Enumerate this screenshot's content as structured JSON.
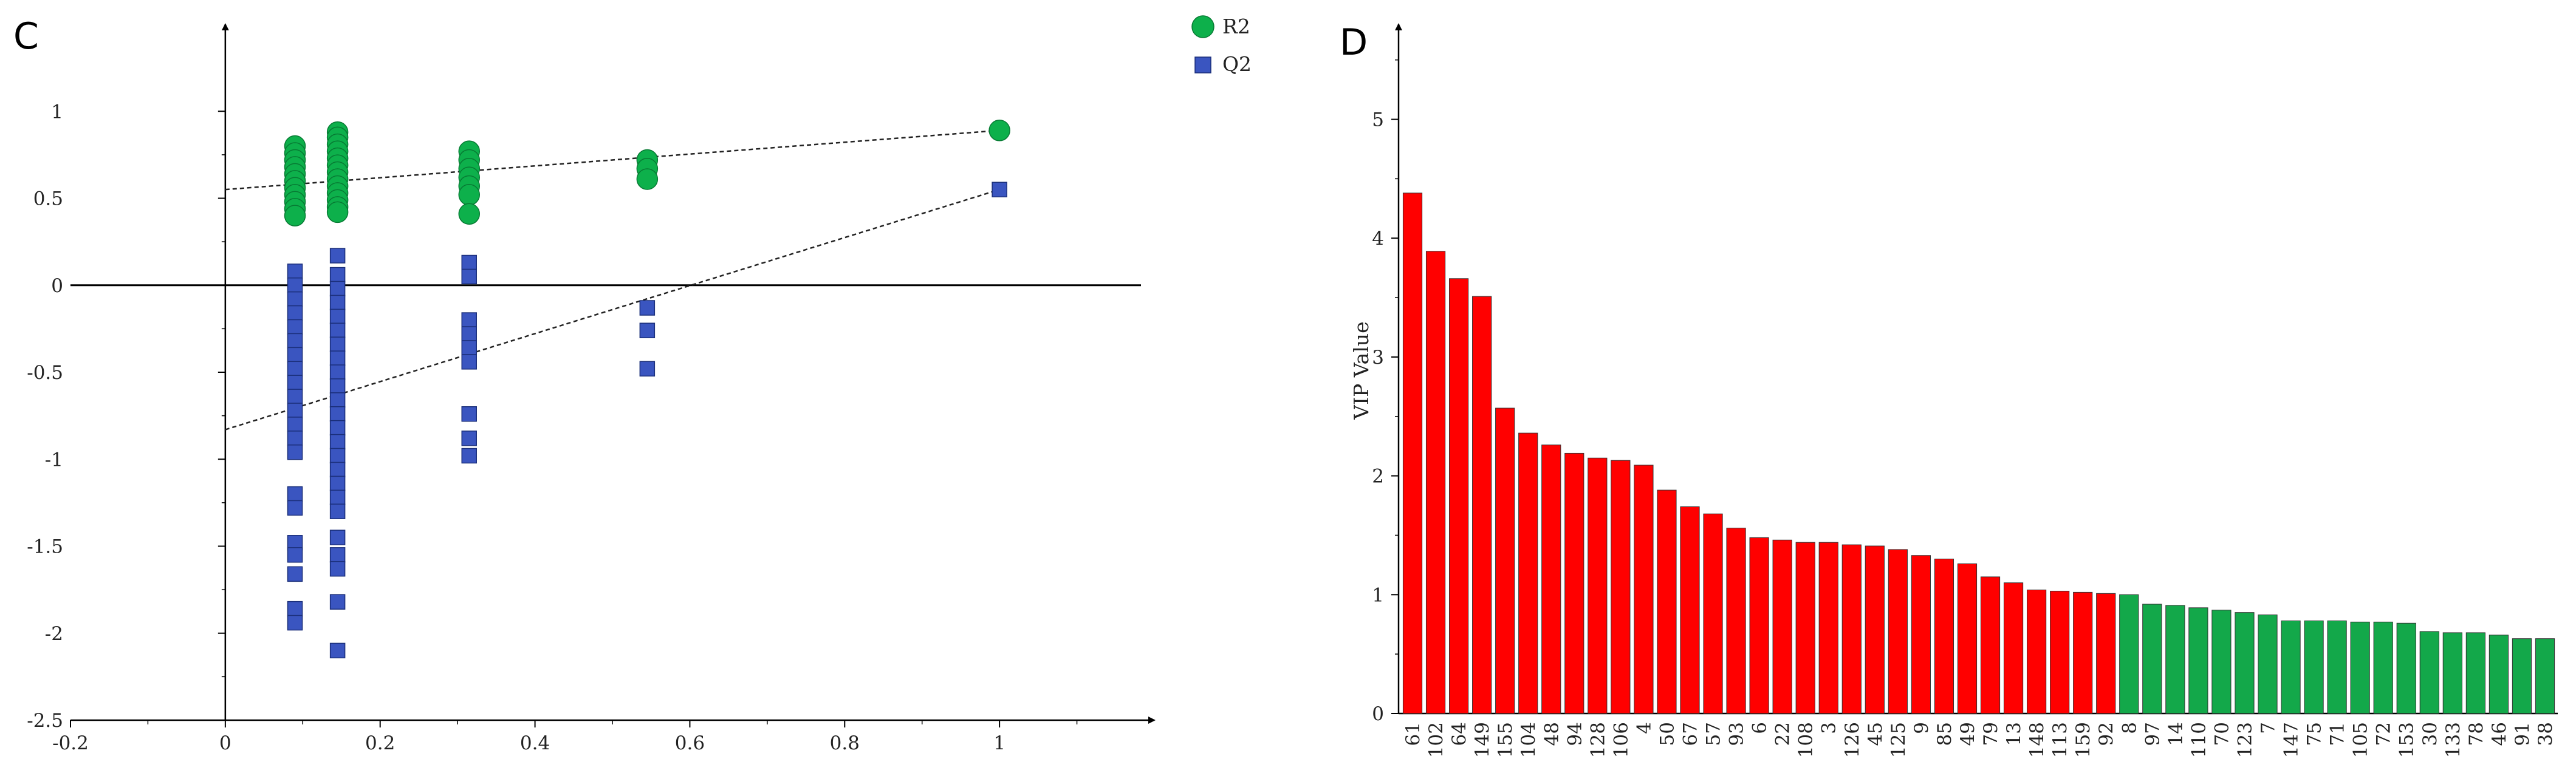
{
  "chart_data": [
    {
      "panel": "C",
      "type": "scatter",
      "title": "",
      "xlabel": "",
      "ylabel": "",
      "xlim": [
        -0.2,
        1.2
      ],
      "ylim": [
        -2.5,
        1.5
      ],
      "xticks": [
        -0.2,
        0,
        0.2,
        0.4,
        0.6,
        0.8,
        1
      ],
      "xtick_labels": [
        "-0.2",
        "0",
        "0.2",
        "0.4",
        "0.6",
        "0.8",
        "1"
      ],
      "yticks": [
        -2.5,
        -2,
        -1.5,
        -1,
        -0.5,
        0,
        0.5,
        1
      ],
      "ytick_labels": [
        "-2.5",
        "-2",
        "-1.5",
        "-1",
        "-0.5",
        "0",
        "0.5",
        "1"
      ],
      "legend": [
        {
          "name": "R2",
          "color": "#0db04b",
          "marker": "circle"
        },
        {
          "name": "Q2",
          "color": "#3a55c0",
          "marker": "square"
        }
      ],
      "series": [
        {
          "name": "R2",
          "points": [
            [
              0.09,
              0.8
            ],
            [
              0.09,
              0.76
            ],
            [
              0.09,
              0.72
            ],
            [
              0.09,
              0.68
            ],
            [
              0.09,
              0.64
            ],
            [
              0.09,
              0.6
            ],
            [
              0.09,
              0.56
            ],
            [
              0.09,
              0.52
            ],
            [
              0.09,
              0.48
            ],
            [
              0.09,
              0.44
            ],
            [
              0.09,
              0.4
            ],
            [
              0.145,
              0.88
            ],
            [
              0.145,
              0.85
            ],
            [
              0.145,
              0.81
            ],
            [
              0.145,
              0.77
            ],
            [
              0.145,
              0.73
            ],
            [
              0.145,
              0.69
            ],
            [
              0.145,
              0.65
            ],
            [
              0.145,
              0.61
            ],
            [
              0.145,
              0.57
            ],
            [
              0.145,
              0.53
            ],
            [
              0.145,
              0.49
            ],
            [
              0.145,
              0.45
            ],
            [
              0.145,
              0.42
            ],
            [
              0.315,
              0.77
            ],
            [
              0.315,
              0.72
            ],
            [
              0.315,
              0.67
            ],
            [
              0.315,
              0.62
            ],
            [
              0.315,
              0.57
            ],
            [
              0.315,
              0.52
            ],
            [
              0.315,
              0.41
            ],
            [
              0.545,
              0.72
            ],
            [
              0.545,
              0.67
            ],
            [
              0.545,
              0.61
            ],
            [
              1.0,
              0.89
            ]
          ],
          "trend": {
            "x": [
              0,
              1.0
            ],
            "y": [
              0.55,
              0.89
            ]
          }
        },
        {
          "name": "Q2",
          "points": [
            [
              0.09,
              0.08
            ],
            [
              0.09,
              0.0
            ],
            [
              0.09,
              -0.08
            ],
            [
              0.09,
              -0.16
            ],
            [
              0.09,
              -0.24
            ],
            [
              0.09,
              -0.32
            ],
            [
              0.09,
              -0.4
            ],
            [
              0.09,
              -0.48
            ],
            [
              0.09,
              -0.56
            ],
            [
              0.09,
              -0.64
            ],
            [
              0.09,
              -0.72
            ],
            [
              0.09,
              -0.8
            ],
            [
              0.09,
              -0.88
            ],
            [
              0.09,
              -0.96
            ],
            [
              0.09,
              -1.2
            ],
            [
              0.09,
              -1.28
            ],
            [
              0.09,
              -1.48
            ],
            [
              0.09,
              -1.55
            ],
            [
              0.09,
              -1.66
            ],
            [
              0.09,
              -1.86
            ],
            [
              0.09,
              -1.94
            ],
            [
              0.145,
              0.17
            ],
            [
              0.145,
              0.06
            ],
            [
              0.145,
              -0.02
            ],
            [
              0.145,
              -0.1
            ],
            [
              0.145,
              -0.18
            ],
            [
              0.145,
              -0.26
            ],
            [
              0.145,
              -0.34
            ],
            [
              0.145,
              -0.42
            ],
            [
              0.145,
              -0.5
            ],
            [
              0.145,
              -0.58
            ],
            [
              0.145,
              -0.66
            ],
            [
              0.145,
              -0.74
            ],
            [
              0.145,
              -0.82
            ],
            [
              0.145,
              -0.9
            ],
            [
              0.145,
              -0.98
            ],
            [
              0.145,
              -1.06
            ],
            [
              0.145,
              -1.14
            ],
            [
              0.145,
              -1.22
            ],
            [
              0.145,
              -1.3
            ],
            [
              0.145,
              -1.45
            ],
            [
              0.145,
              -1.55
            ],
            [
              0.145,
              -1.63
            ],
            [
              0.145,
              -1.82
            ],
            [
              0.145,
              -2.1
            ],
            [
              0.315,
              0.13
            ],
            [
              0.315,
              0.05
            ],
            [
              0.315,
              -0.2
            ],
            [
              0.315,
              -0.28
            ],
            [
              0.315,
              -0.36
            ],
            [
              0.315,
              -0.44
            ],
            [
              0.315,
              -0.74
            ],
            [
              0.315,
              -0.88
            ],
            [
              0.315,
              -0.98
            ],
            [
              0.545,
              -0.13
            ],
            [
              0.545,
              -0.26
            ],
            [
              0.545,
              -0.48
            ],
            [
              1.0,
              0.55
            ]
          ],
          "trend": {
            "x": [
              0,
              1.0
            ],
            "y": [
              -0.83,
              0.55
            ]
          }
        }
      ]
    },
    {
      "panel": "D",
      "type": "bar",
      "title": "",
      "xlabel": "",
      "ylabel": "VIP Value",
      "ylim": [
        0,
        5.8
      ],
      "yticks": [
        0,
        1,
        2,
        3,
        4,
        5
      ],
      "ytick_labels": [
        "0",
        "1",
        "2",
        "3",
        "4",
        "5"
      ],
      "categories": [
        "61",
        "102",
        "64",
        "149",
        "155",
        "104",
        "48",
        "94",
        "128",
        "106",
        "4",
        "50",
        "67",
        "57",
        "93",
        "6",
        "22",
        "108",
        "3",
        "126",
        "45",
        "125",
        "9",
        "85",
        "49",
        "79",
        "13",
        "148",
        "113",
        "159",
        "92",
        "8",
        "97",
        "14",
        "110",
        "70",
        "123",
        "7",
        "147",
        "75",
        "71",
        "105",
        "72",
        "153",
        "30",
        "133",
        "78",
        "46",
        "91",
        "38"
      ],
      "values": [
        4.38,
        3.89,
        3.66,
        3.51,
        2.57,
        2.36,
        2.26,
        2.19,
        2.15,
        2.13,
        2.09,
        1.88,
        1.74,
        1.68,
        1.56,
        1.48,
        1.46,
        1.44,
        1.44,
        1.42,
        1.41,
        1.38,
        1.33,
        1.3,
        1.26,
        1.15,
        1.1,
        1.04,
        1.03,
        1.02,
        1.01,
        1.0,
        0.92,
        0.91,
        0.89,
        0.87,
        0.85,
        0.83,
        0.78,
        0.78,
        0.78,
        0.77,
        0.77,
        0.76,
        0.69,
        0.68,
        0.68,
        0.66,
        0.63,
        0.63
      ],
      "colors": {
        "high": "#ff0000",
        "low": "#13a84a"
      },
      "threshold": 1.0
    }
  ]
}
